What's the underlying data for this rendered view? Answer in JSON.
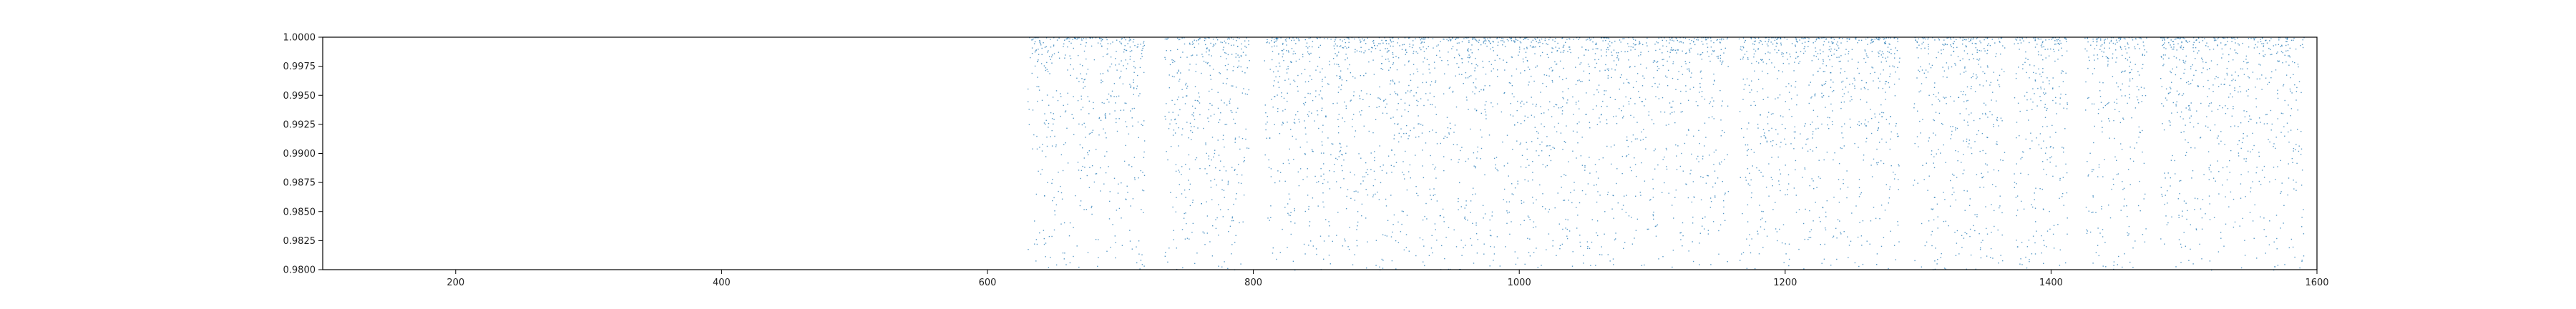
{
  "chart_data": {
    "type": "scatter",
    "title": "",
    "xlabel": "",
    "ylabel": "",
    "xlim": [
      100,
      1600
    ],
    "ylim": [
      0.98,
      1.0
    ],
    "x_ticks": [
      {
        "value": 200,
        "label": "200"
      },
      {
        "value": 400,
        "label": "400"
      },
      {
        "value": 600,
        "label": "600"
      },
      {
        "value": 800,
        "label": "800"
      },
      {
        "value": 1000,
        "label": "1000"
      },
      {
        "value": 1200,
        "label": "1200"
      },
      {
        "value": 1400,
        "label": "1400"
      },
      {
        "value": 1600,
        "label": "1600"
      }
    ],
    "y_ticks": [
      {
        "value": 0.98,
        "label": "0.9800"
      },
      {
        "value": 0.9825,
        "label": "0.9825"
      },
      {
        "value": 0.985,
        "label": "0.9850"
      },
      {
        "value": 0.9875,
        "label": "0.9875"
      },
      {
        "value": 0.99,
        "label": "0.9900"
      },
      {
        "value": 0.9925,
        "label": "0.9925"
      },
      {
        "value": 0.995,
        "label": "0.9950"
      },
      {
        "value": 0.9975,
        "label": "0.9975"
      },
      {
        "value": 1.0,
        "label": "1.0000"
      }
    ],
    "grid": false,
    "legend": "none",
    "point_color": "#1f77b4",
    "series": [
      {
        "x_range": [
          630,
          1590
        ],
        "y_range": [
          0.98,
          1.0
        ],
        "concentration": "densest near y = 1.0000, thinning toward 0.9800",
        "gaps_x": [
          [
            718,
            733
          ],
          [
            797,
            808
          ],
          [
            1157,
            1165
          ],
          [
            1286,
            1296
          ],
          [
            1365,
            1372
          ],
          [
            1412,
            1425
          ],
          [
            1472,
            1482
          ]
        ]
      }
    ]
  }
}
